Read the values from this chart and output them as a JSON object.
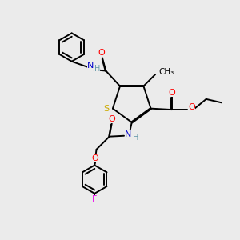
{
  "bg_color": "#ebebeb",
  "colors": {
    "N": "#0000cc",
    "O": "#ff0000",
    "S": "#ccaa00",
    "F": "#ee00ee",
    "C": "#000000",
    "H": "#6699aa"
  },
  "bond_lw": 1.4,
  "font_size": 8.0
}
